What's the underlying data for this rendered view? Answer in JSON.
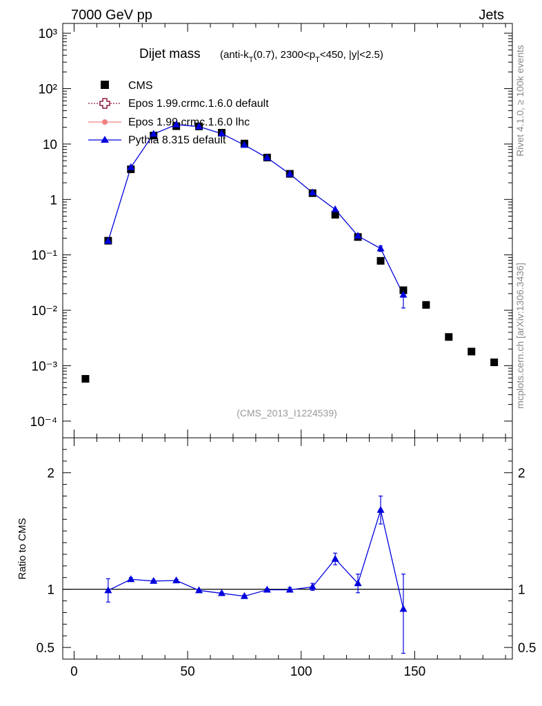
{
  "header": {
    "left_label": "7000 GeV pp",
    "right_label": "Jets",
    "side_label_rivet": "Rivet 4.1.0, ≥ 100k events",
    "side_label_mcplots": "mcplots.cern.ch [arXiv:1306.3436]",
    "analysis_id": "(CMS_2013_I1224539)"
  },
  "colors": {
    "cms": "#000000",
    "epos_default": "#8b1a3a",
    "epos_lhc": "#f08080",
    "pythia": "#0000dd"
  },
  "chart_data": [
    {
      "type": "scatter",
      "title": "Dijet mass",
      "title_suffix": "(anti-kT(0.7), 2300<pT<450, |y|<2.5)",
      "title_suffix_parts": {
        "a": "(anti-k",
        "b": "T",
        "c": "(0.7), 2300<p",
        "d": "T",
        "e": "<450, |y|<2.5)"
      },
      "xlim": [
        -5,
        193
      ],
      "ylim": [
        5e-05,
        1500
      ],
      "yscale": "log",
      "ytick_labels": [
        "10⁻⁴",
        "10⁻³",
        "10⁻²",
        "10⁻¹",
        "1",
        "10",
        "10²",
        "10³"
      ],
      "legend_position": "top-left",
      "series": [
        {
          "name": "CMS",
          "marker": "square",
          "x": [
            5,
            15,
            25,
            35,
            45,
            55,
            65,
            75,
            85,
            95,
            105,
            115,
            125,
            135,
            145,
            155,
            165,
            175,
            185
          ],
          "y": [
            0.00058,
            0.18,
            3.5,
            14.2,
            21.0,
            20.8,
            16.0,
            10.2,
            5.7,
            2.9,
            1.3,
            0.53,
            0.21,
            0.078,
            0.023,
            0.0125,
            0.0033,
            0.0018,
            0.00115
          ]
        },
        {
          "name": "Epos 1.99.crmc.1.6.0 default",
          "marker": "open-cross",
          "x": [],
          "y": []
        },
        {
          "name": "Epos 1.99.crmc.1.6.0 lhc",
          "marker": "small-circle",
          "x": [],
          "y": []
        },
        {
          "name": "Pythia 8.315 default",
          "marker": "triangle",
          "x": [
            15,
            25,
            35,
            45,
            55,
            65,
            75,
            85,
            95,
            105,
            115,
            125,
            135,
            145
          ],
          "y": [
            0.178,
            3.8,
            15.2,
            22.4,
            20.6,
            15.4,
            9.6,
            5.65,
            2.88,
            1.33,
            0.66,
            0.22,
            0.13,
            0.019
          ],
          "yerr_low": [
            0.004,
            0.05,
            0.1,
            0.1,
            0.1,
            0.1,
            0.1,
            0.05,
            0.03,
            0.02,
            0.015,
            0.01,
            0.015,
            0.008
          ],
          "yerr_high": [
            0.004,
            0.05,
            0.1,
            0.1,
            0.1,
            0.1,
            0.1,
            0.05,
            0.03,
            0.02,
            0.015,
            0.01,
            0.015,
            0.005
          ]
        }
      ]
    },
    {
      "type": "line",
      "ylabel": "Ratio to CMS",
      "xlim": [
        -5,
        193
      ],
      "ylim": [
        0.4,
        2.3
      ],
      "reference_line": 1,
      "xticks": [
        0,
        50,
        100,
        150
      ],
      "xtick_labels": [
        "0",
        "50",
        "100",
        "150"
      ],
      "yticks": [
        0.5,
        1,
        2
      ],
      "ytick_labels": [
        "0.5",
        "1",
        "2"
      ],
      "series": [
        {
          "name": "Pythia 8.315 default",
          "x": [
            15,
            25,
            35,
            45,
            55,
            65,
            75,
            85,
            95,
            105,
            115,
            125,
            135,
            145
          ],
          "y": [
            0.99,
            1.085,
            1.07,
            1.075,
            0.99,
            0.965,
            0.94,
            0.995,
            0.995,
            1.02,
            1.26,
            1.05,
            1.68,
            0.83
          ],
          "err_low": [
            0.1,
            0.015,
            0.01,
            0.01,
            0.01,
            0.01,
            0.01,
            0.01,
            0.02,
            0.03,
            0.05,
            0.08,
            0.12,
            0.38
          ],
          "err_high": [
            0.1,
            0.015,
            0.01,
            0.01,
            0.01,
            0.01,
            0.01,
            0.01,
            0.02,
            0.03,
            0.05,
            0.08,
            0.12,
            0.3
          ]
        }
      ]
    }
  ]
}
